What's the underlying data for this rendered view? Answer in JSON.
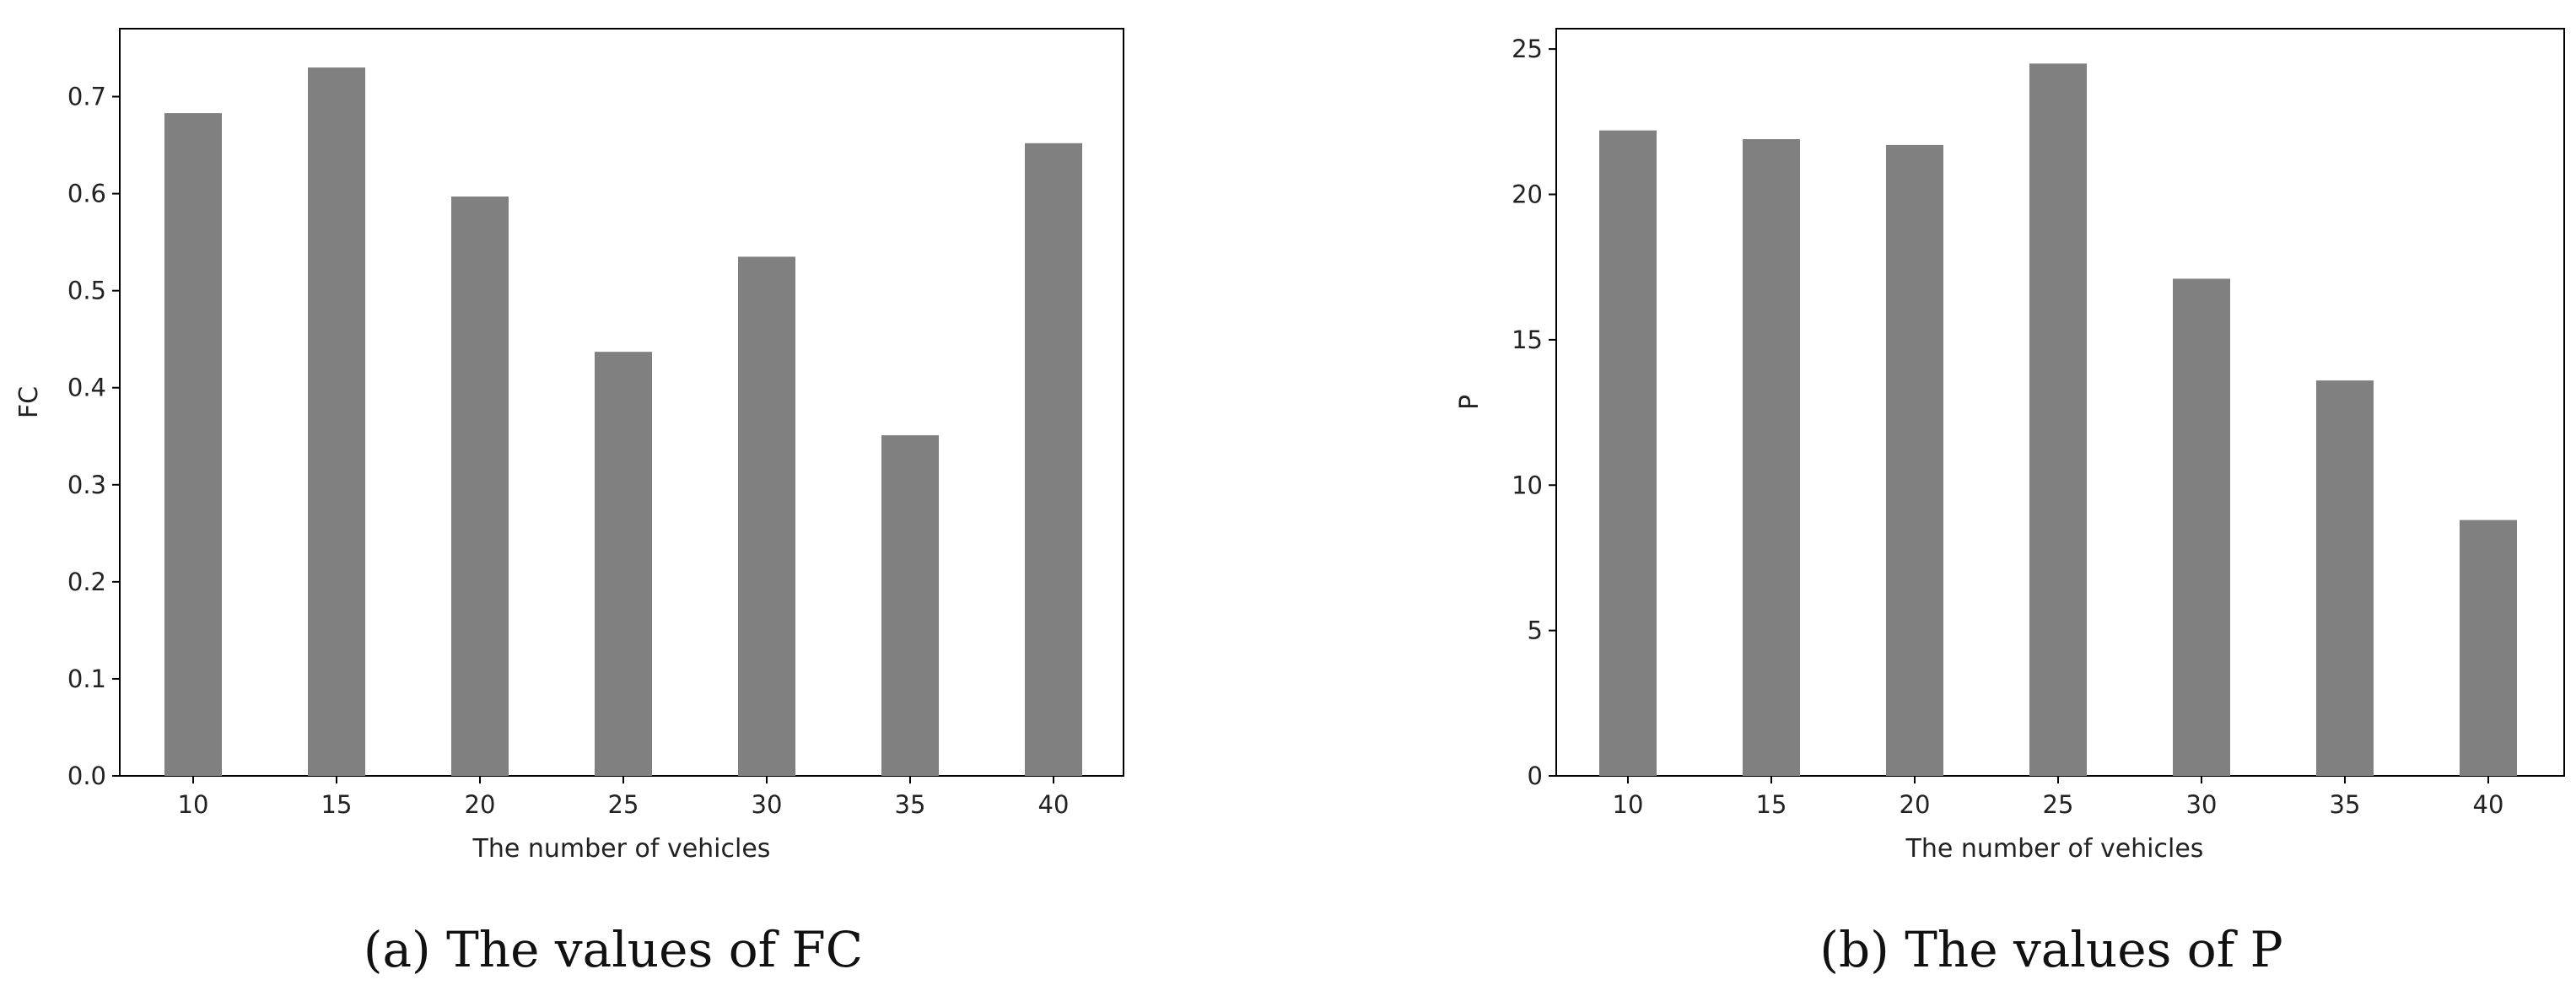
{
  "charts": [
    {
      "caption": "(a)  The values of FC",
      "chart_data": {
        "type": "bar",
        "categories": [
          "10",
          "15",
          "20",
          "25",
          "30",
          "35",
          "40"
        ],
        "values": [
          0.683,
          0.73,
          0.597,
          0.437,
          0.535,
          0.351,
          0.652
        ],
        "xlabel": "The number of vehicles",
        "ylabel": "FC",
        "ylim": [
          0,
          0.77
        ],
        "yticks": [
          "0.0",
          "0.1",
          "0.2",
          "0.3",
          "0.4",
          "0.5",
          "0.6",
          "0.7"
        ],
        "grid": false,
        "bar_color": "#808080"
      }
    },
    {
      "caption": "(b)  The values of P",
      "chart_data": {
        "type": "bar",
        "categories": [
          "10",
          "15",
          "20",
          "25",
          "30",
          "35",
          "40"
        ],
        "values": [
          22.2,
          21.9,
          21.7,
          24.5,
          17.1,
          13.6,
          8.8
        ],
        "xlabel": "The number of vehicles",
        "ylabel": "P",
        "ylim": [
          0,
          25.7
        ],
        "yticks": [
          "0",
          "5",
          "10",
          "15",
          "20",
          "25"
        ],
        "grid": false,
        "bar_color": "#808080"
      }
    }
  ]
}
